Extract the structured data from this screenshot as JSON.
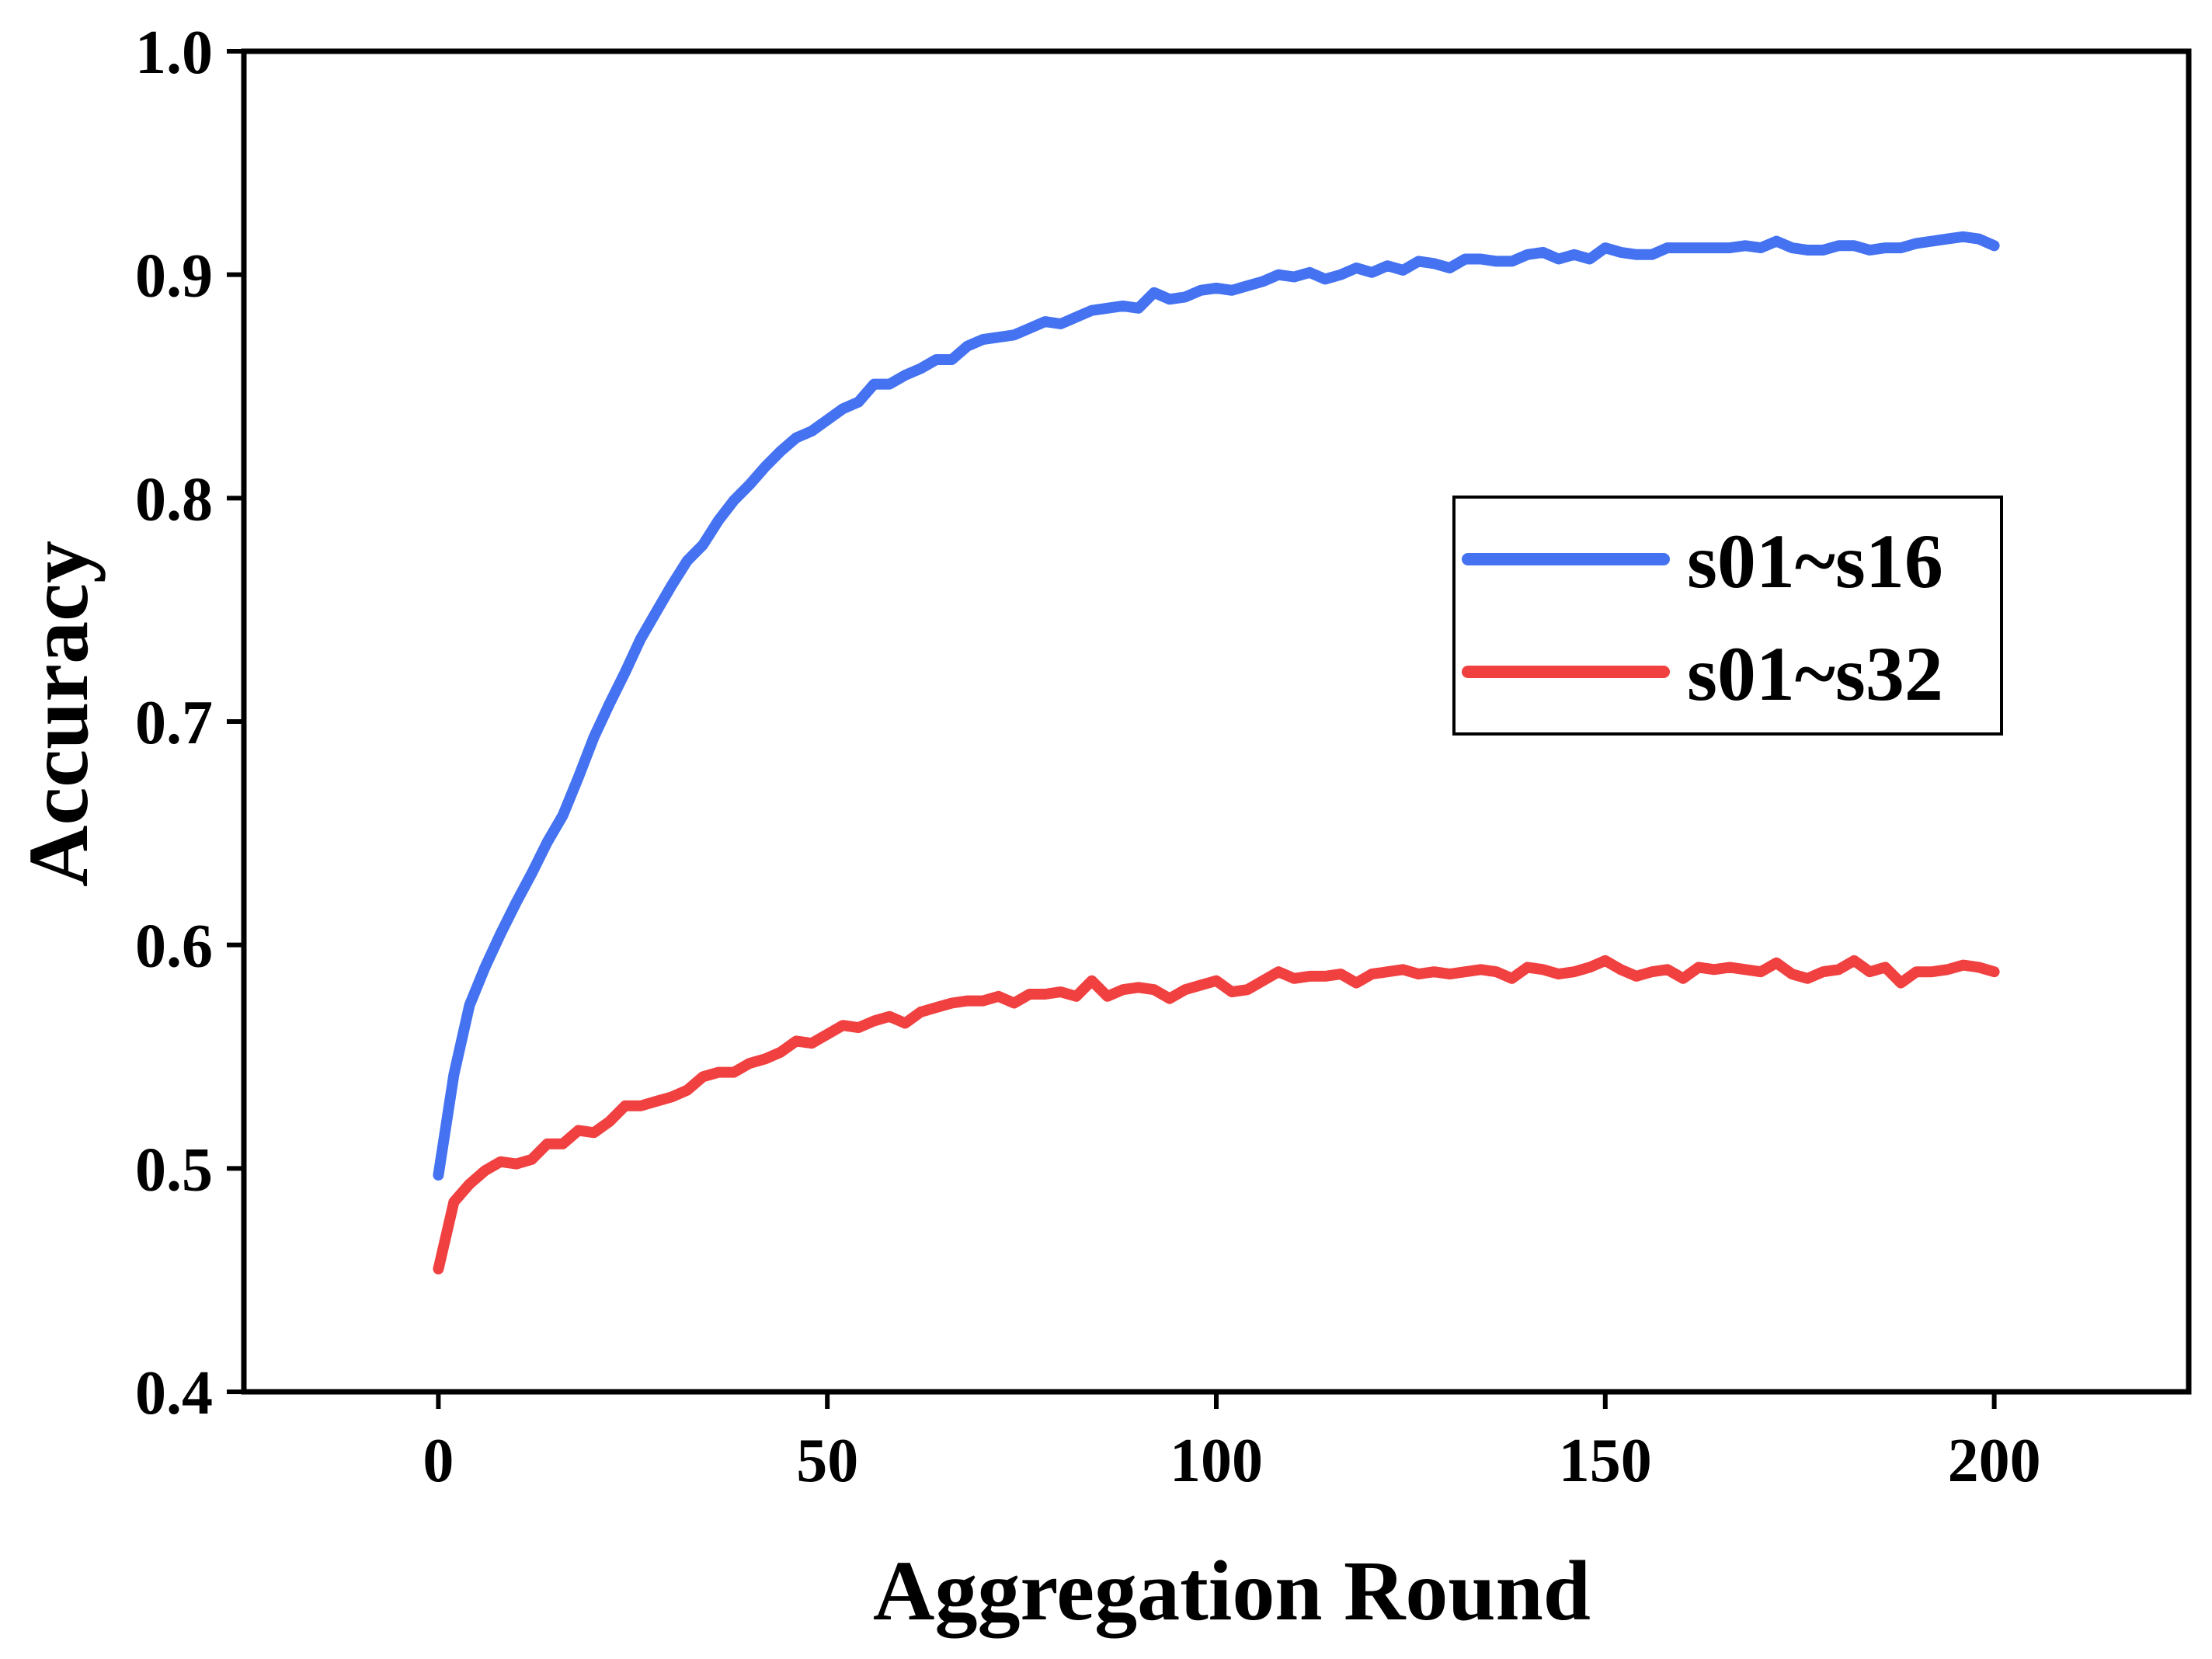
{
  "chart_data": {
    "type": "line",
    "xlabel": "Aggregation Round",
    "ylabel": "Accuracy",
    "xlim": [
      -25,
      225
    ],
    "ylim": [
      0.4,
      1.0
    ],
    "x_ticks": [
      0,
      50,
      100,
      150,
      200
    ],
    "x_tick_labels": [
      "0",
      "50",
      "100",
      "150",
      "200"
    ],
    "y_ticks": [
      0.4,
      0.5,
      0.6,
      0.7,
      0.8,
      0.9,
      1.0
    ],
    "y_tick_labels": [
      "0.4",
      "0.5",
      "0.6",
      "0.7",
      "0.8",
      "0.9",
      "1.0"
    ],
    "grid": false,
    "legend_position": "right",
    "x": [
      0,
      2,
      4,
      6,
      8,
      10,
      12,
      14,
      16,
      18,
      20,
      22,
      24,
      26,
      28,
      30,
      32,
      34,
      36,
      38,
      40,
      42,
      44,
      46,
      48,
      50,
      52,
      54,
      56,
      58,
      60,
      62,
      64,
      66,
      68,
      70,
      72,
      74,
      76,
      78,
      80,
      82,
      84,
      86,
      88,
      90,
      92,
      94,
      96,
      98,
      100,
      102,
      104,
      106,
      108,
      110,
      112,
      114,
      116,
      118,
      120,
      122,
      124,
      126,
      128,
      130,
      132,
      134,
      136,
      138,
      140,
      142,
      144,
      146,
      148,
      150,
      152,
      154,
      156,
      158,
      160,
      162,
      164,
      166,
      168,
      170,
      172,
      174,
      176,
      178,
      180,
      182,
      184,
      186,
      188,
      190,
      192,
      194,
      196,
      198,
      200
    ],
    "series": [
      {
        "name": "s01~s16",
        "color": "#4472f0",
        "values": [
          0.497,
          0.542,
          0.573,
          0.59,
          0.605,
          0.619,
          0.632,
          0.646,
          0.658,
          0.675,
          0.693,
          0.708,
          0.722,
          0.737,
          0.749,
          0.761,
          0.772,
          0.779,
          0.79,
          0.799,
          0.806,
          0.814,
          0.821,
          0.827,
          0.83,
          0.835,
          0.84,
          0.843,
          0.851,
          0.851,
          0.855,
          0.858,
          0.862,
          0.862,
          0.868,
          0.871,
          0.872,
          0.873,
          0.876,
          0.879,
          0.878,
          0.881,
          0.884,
          0.885,
          0.886,
          0.885,
          0.892,
          0.889,
          0.89,
          0.893,
          0.894,
          0.893,
          0.895,
          0.897,
          0.9,
          0.899,
          0.901,
          0.898,
          0.9,
          0.903,
          0.901,
          0.904,
          0.902,
          0.906,
          0.905,
          0.903,
          0.907,
          0.907,
          0.906,
          0.906,
          0.909,
          0.91,
          0.907,
          0.909,
          0.907,
          0.912,
          0.91,
          0.909,
          0.909,
          0.912,
          0.912,
          0.912,
          0.912,
          0.912,
          0.913,
          0.912,
          0.915,
          0.912,
          0.911,
          0.911,
          0.913,
          0.913,
          0.911,
          0.912,
          0.912,
          0.914,
          0.915,
          0.916,
          0.917,
          0.916,
          0.913
        ]
      },
      {
        "name": "s01~s32",
        "color": "#f04040",
        "values": [
          0.455,
          0.485,
          0.493,
          0.499,
          0.503,
          0.502,
          0.504,
          0.511,
          0.511,
          0.517,
          0.516,
          0.521,
          0.528,
          0.528,
          0.53,
          0.532,
          0.535,
          0.541,
          0.543,
          0.543,
          0.547,
          0.549,
          0.552,
          0.557,
          0.556,
          0.56,
          0.564,
          0.563,
          0.566,
          0.568,
          0.565,
          0.57,
          0.572,
          0.574,
          0.575,
          0.575,
          0.577,
          0.574,
          0.578,
          0.578,
          0.579,
          0.577,
          0.584,
          0.577,
          0.58,
          0.581,
          0.58,
          0.576,
          0.58,
          0.582,
          0.584,
          0.579,
          0.58,
          0.584,
          0.588,
          0.585,
          0.586,
          0.586,
          0.587,
          0.583,
          0.587,
          0.588,
          0.589,
          0.587,
          0.588,
          0.587,
          0.588,
          0.589,
          0.588,
          0.585,
          0.59,
          0.589,
          0.587,
          0.588,
          0.59,
          0.593,
          0.589,
          0.586,
          0.588,
          0.589,
          0.585,
          0.59,
          0.589,
          0.59,
          0.589,
          0.588,
          0.592,
          0.587,
          0.585,
          0.588,
          0.589,
          0.593,
          0.588,
          0.59,
          0.583,
          0.588,
          0.588,
          0.589,
          0.591,
          0.59,
          0.588
        ]
      }
    ]
  }
}
